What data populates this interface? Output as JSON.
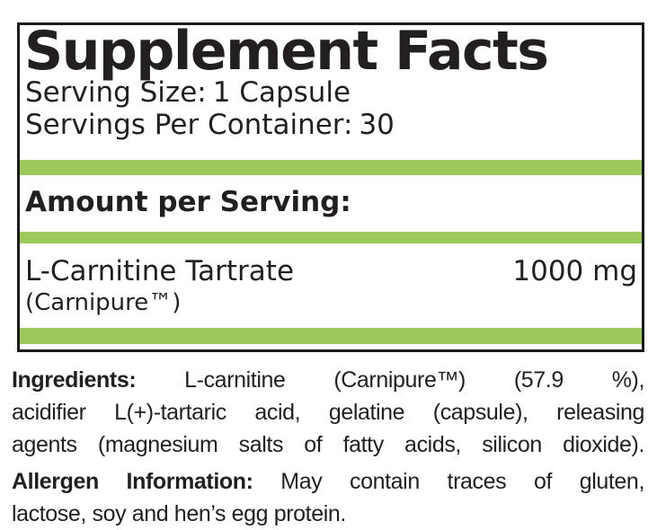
{
  "colors": {
    "accent_green": "#9BC95B",
    "ink": "#231F20"
  },
  "panel": {
    "title": "Supplement Facts",
    "serving_size_label": "Serving Size:",
    "serving_size_value": "1 Capsule",
    "servings_per_container_label": "Servings Per Container:",
    "servings_per_container_value": "30",
    "amount_heading": "Amount per Serving:",
    "rows": [
      {
        "name": "L-Carnitine Tartrate",
        "subname": "(Carnipure™)",
        "amount": "1000 mg"
      }
    ]
  },
  "ingredients": {
    "label": "Ingredients:",
    "lines": [
      "L-carnitine (Carnipure™) (57.9 %),",
      "acidifier L(+)-tartaric acid, gelatine (capsule), releasing",
      "agents (magnesium salts of fatty acids, silicon dioxide)."
    ]
  },
  "allergen": {
    "label": "Allergen Information:",
    "lines": [
      "May contain traces of gluten,",
      "lactose, soy and hen’s egg protein."
    ]
  }
}
